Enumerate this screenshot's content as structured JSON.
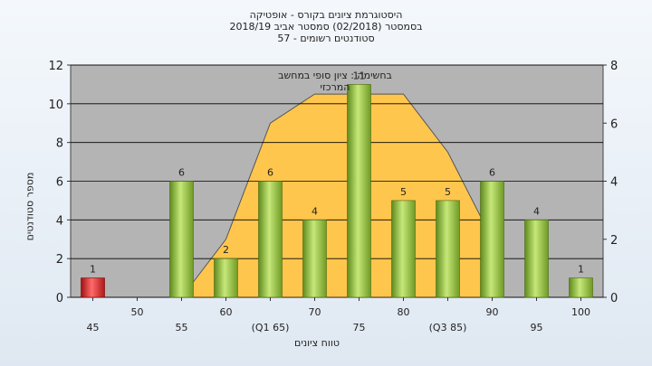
{
  "chart_data": {
    "type": "bar",
    "title_lines": [
      "היסטוגרמת ציונים בקורס - אופטיקה",
      "בסמסטר  (02/2018)  סמסטר אביב 2018/19",
      "סטודנטים רשומים - 57"
    ],
    "annotation": "בחשימה : ציון סופי במחשב המרכזי",
    "xlabel": "טווח ציונים",
    "ylabel": "מספר סטודנטים",
    "categories": [
      "45",
      "50",
      "55",
      "60",
      "(Q1 65)",
      "70",
      "75",
      "80",
      "(Q3 85)",
      "90",
      "95",
      "100"
    ],
    "values": [
      1,
      0,
      6,
      2,
      6,
      4,
      11,
      5,
      5,
      6,
      4,
      1
    ],
    "data_labels": [
      "1",
      "",
      "6",
      "2",
      "6",
      "4",
      "11",
      "5",
      "5",
      "6",
      "4",
      "1"
    ],
    "bar_colors": [
      "#e02020",
      "#9ccc3a",
      "#9ccc3a",
      "#9ccc3a",
      "#9ccc3a",
      "#9ccc3a",
      "#9ccc3a",
      "#9ccc3a",
      "#9ccc3a",
      "#9ccc3a",
      "#9ccc3a",
      "#9ccc3a"
    ],
    "ylim": [
      0,
      12
    ],
    "yticks": [
      "0",
      "2",
      "4",
      "6",
      "8",
      "10",
      "12"
    ],
    "y2lim": [
      0,
      8
    ],
    "y2ticks": [
      "0",
      "2",
      "4",
      "6",
      "8"
    ],
    "background_curve": {
      "axis": "right",
      "x_index": [
        2,
        3,
        4,
        5,
        6,
        7,
        8,
        9
      ],
      "y": [
        0,
        2,
        6,
        7,
        7,
        7,
        5,
        2
      ],
      "color": "#ffc64d"
    },
    "grid": true,
    "plot_background": "#b4b4b4"
  }
}
